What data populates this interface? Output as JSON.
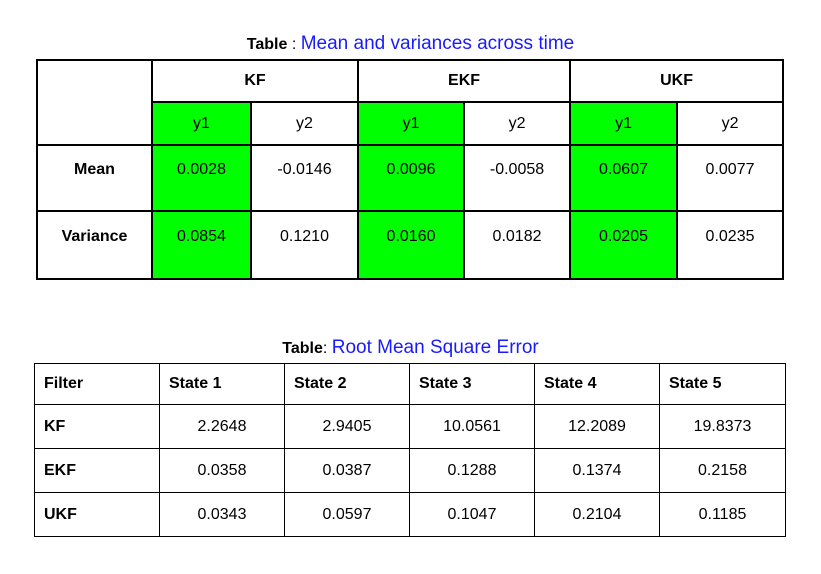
{
  "table1": {
    "caption_label": "Table",
    "caption_sep": " : ",
    "caption_text": "Mean and variances across time",
    "groups": [
      "KF",
      "EKF",
      "UKF"
    ],
    "subheaders": [
      "y1",
      "y2",
      "y1",
      "y2",
      "y1",
      "y2"
    ],
    "rows": [
      {
        "label": "Mean",
        "values": [
          "0.0028",
          "-0.0146",
          "0.0096",
          "-0.0058",
          "0.0607",
          "0.0077"
        ]
      },
      {
        "label": "Variance",
        "values": [
          "0.0854",
          "0.1210",
          "0.0160",
          "0.0182",
          "0.0205",
          "0.0235"
        ]
      }
    ],
    "highlight_color": "#00ff00"
  },
  "table2": {
    "caption_label": "Table",
    "caption_sep": ": ",
    "caption_text": "Root Mean Square Error",
    "headers": [
      "Filter",
      "State 1",
      "State 2",
      "State 3",
      "State 4",
      "State 5"
    ],
    "rows": [
      {
        "filter": "KF",
        "values": [
          "2.2648",
          "2.9405",
          "10.0561",
          "12.2089",
          "19.8373"
        ]
      },
      {
        "filter": "EKF",
        "values": [
          "0.0358",
          "0.0387",
          "0.1288",
          "0.1374",
          "0.2158"
        ]
      },
      {
        "filter": "UKF",
        "values": [
          "0.0343",
          "0.0597",
          "0.1047",
          "0.2104",
          "0.1185"
        ]
      }
    ]
  },
  "colors": {
    "caption_text": "#1a1aff",
    "border": "#000000"
  }
}
